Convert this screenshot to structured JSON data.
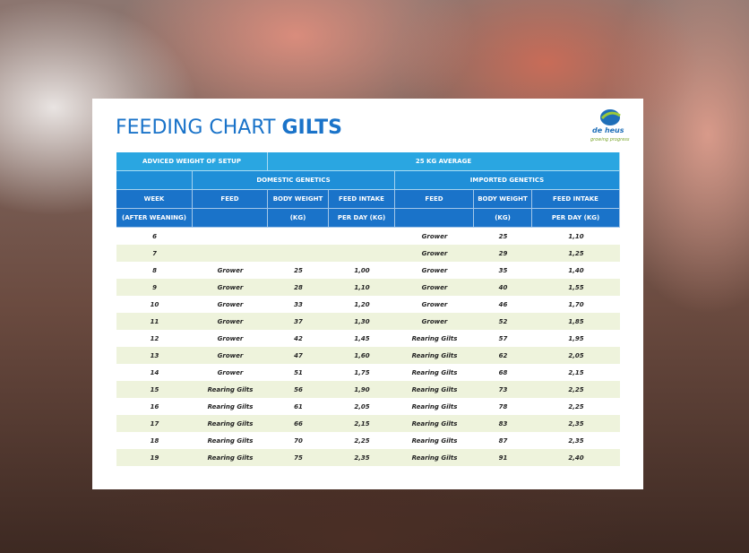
{
  "header": {
    "title": "FEEDING CHART",
    "title_bold": "GILTS",
    "logo": "de heus",
    "tagline": "growing progress"
  },
  "table": {
    "top": [
      "ADVICED WEIGHT OF SETUP",
      "25 KG AVERAGE"
    ],
    "groups": [
      "DOMESTIC GENETICS",
      "IMPORTED GENETICS"
    ],
    "columns": [
      "WEEK",
      "FEED",
      "BODY WEIGHT",
      "FEED INTAKE",
      "FEED",
      "BODY WEIGHT",
      "FEED INTAKE"
    ],
    "units": [
      "(AFTER WEANING)",
      null,
      "(KG)",
      "PER DAY (KG)",
      null,
      "(KG)",
      "PER DAY (KG)"
    ],
    "rows": [
      [
        "6",
        null,
        null,
        null,
        "Grower",
        "25",
        "1,10"
      ],
      [
        "7",
        null,
        null,
        null,
        "Grower",
        "29",
        "1,25"
      ],
      [
        "8",
        "Grower",
        "25",
        "1,00",
        "Grower",
        "35",
        "1,40"
      ],
      [
        "9",
        "Grower",
        "28",
        "1,10",
        "Grower",
        "40",
        "1,55"
      ],
      [
        "10",
        "Grower",
        "33",
        "1,20",
        "Grower",
        "46",
        "1,70"
      ],
      [
        "11",
        "Grower",
        "37",
        "1,30",
        "Grower",
        "52",
        "1,85"
      ],
      [
        "12",
        "Grower",
        "42",
        "1,45",
        "Rearing Gilts",
        "57",
        "1,95"
      ],
      [
        "13",
        "Grower",
        "47",
        "1,60",
        "Rearing Gilts",
        "62",
        "2,05"
      ],
      [
        "14",
        "Grower",
        "51",
        "1,75",
        "Rearing Gilts",
        "68",
        "2,15"
      ],
      [
        "15",
        "Rearing Gilts",
        "56",
        "1,90",
        "Rearing Gilts",
        "73",
        "2,25"
      ],
      [
        "16",
        "Rearing Gilts",
        "61",
        "2,05",
        "Rearing Gilts",
        "78",
        "2,25"
      ],
      [
        "17",
        "Rearing Gilts",
        "66",
        "2,15",
        "Rearing Gilts",
        "83",
        "2,35"
      ],
      [
        "18",
        "Rearing Gilts",
        "70",
        "2,25",
        "Rearing Gilts",
        "87",
        "2,35"
      ],
      [
        "19",
        "Rearing Gilts",
        "75",
        "2,35",
        "Rearing Gilts",
        "91",
        "2,40"
      ]
    ]
  }
}
